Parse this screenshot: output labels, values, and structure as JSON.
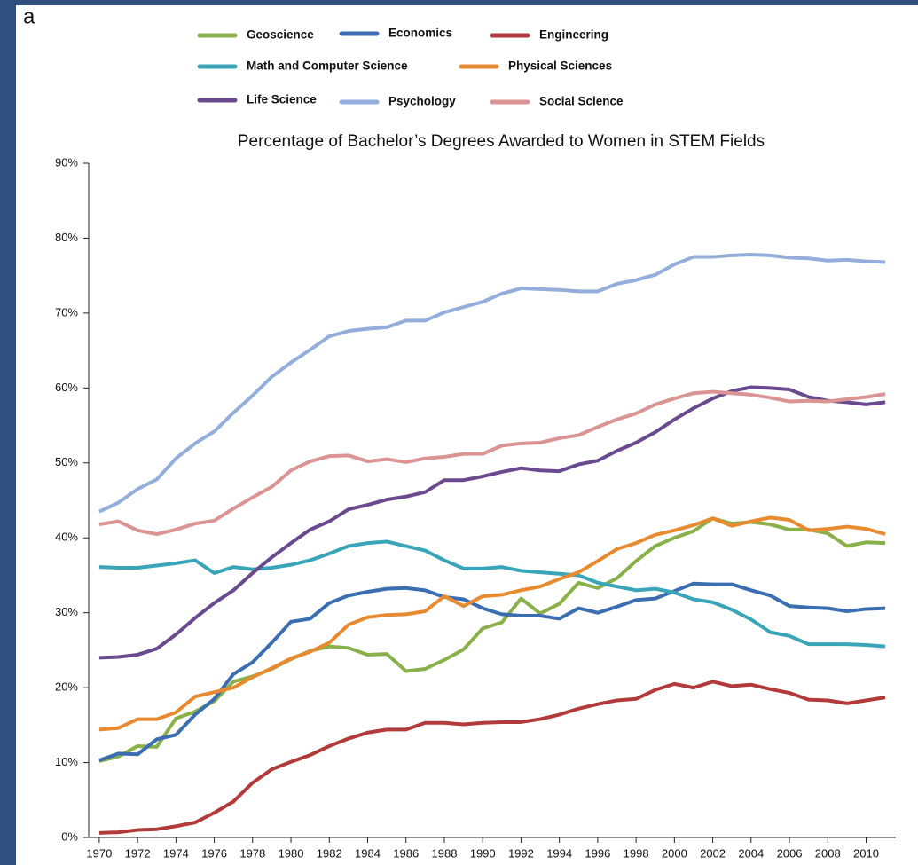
{
  "panel_label": "a",
  "chart_data": {
    "type": "line",
    "title": "Percentage of Bachelor’s Degrees Awarded to Women in STEM Fields",
    "x": [
      1970,
      1971,
      1972,
      1973,
      1974,
      1975,
      1976,
      1977,
      1978,
      1979,
      1980,
      1981,
      1982,
      1983,
      1984,
      1985,
      1986,
      1987,
      1988,
      1989,
      1990,
      1991,
      1992,
      1993,
      1994,
      1995,
      1996,
      1997,
      1998,
      1999,
      2000,
      2001,
      2002,
      2003,
      2004,
      2005,
      2006,
      2007,
      2008,
      2009,
      2010,
      2011
    ],
    "xlim": [
      1969.45,
      2011.55
    ],
    "xticks": [
      1970,
      1972,
      1974,
      1976,
      1978,
      1980,
      1982,
      1984,
      1986,
      1988,
      1990,
      1992,
      1994,
      1996,
      1998,
      2000,
      2002,
      2004,
      2006,
      2008,
      2010
    ],
    "ylim": [
      0,
      90
    ],
    "yticks": [
      {
        "value": 0,
        "label": "0%"
      },
      {
        "value": 10,
        "label": "10%"
      },
      {
        "value": 20,
        "label": "20%"
      },
      {
        "value": 30,
        "label": "30%"
      },
      {
        "value": 40,
        "label": "40%"
      },
      {
        "value": 50,
        "label": "50%"
      },
      {
        "value": 60,
        "label": "60%"
      },
      {
        "value": 70,
        "label": "70%"
      },
      {
        "value": 80,
        "label": "80%"
      },
      {
        "value": 90,
        "label": "90%"
      }
    ],
    "grid": false,
    "series": [
      {
        "name": "Geoscience",
        "color": "#8ab04a",
        "values": [
          10.2,
          10.8,
          12.2,
          12.1,
          15.9,
          16.8,
          18.2,
          20.8,
          21.5,
          22.5,
          23.8,
          24.9,
          25.5,
          25.3,
          24.4,
          24.5,
          22.2,
          22.5,
          23.7,
          25.1,
          27.9,
          28.7,
          31.9,
          29.9,
          31.2,
          34.0,
          33.3,
          34.6,
          36.9,
          38.9,
          40.0,
          40.9,
          42.6,
          41.9,
          42.1,
          41.8,
          41.1,
          41.1,
          40.6,
          38.9,
          39.4,
          39.3
        ]
      },
      {
        "name": "Economics",
        "color": "#3a6eb0",
        "values": [
          10.3,
          11.2,
          11.1,
          13.1,
          13.7,
          16.4,
          18.5,
          21.8,
          23.4,
          26.0,
          28.8,
          29.2,
          31.3,
          32.3,
          32.8,
          33.2,
          33.3,
          33.0,
          32.1,
          31.8,
          30.6,
          29.8,
          29.6,
          29.6,
          29.2,
          30.6,
          30.0,
          30.8,
          31.7,
          31.9,
          32.9,
          33.9,
          33.8,
          33.8,
          33.0,
          32.3,
          30.9,
          30.7,
          30.6,
          30.2,
          30.5,
          30.6
        ]
      },
      {
        "name": "Engineering",
        "color": "#b23a3a",
        "values": [
          0.6,
          0.7,
          1.0,
          1.1,
          1.5,
          2.0,
          3.3,
          4.8,
          7.3,
          9.1,
          10.1,
          11.0,
          12.2,
          13.2,
          14.0,
          14.4,
          14.4,
          15.3,
          15.3,
          15.1,
          15.3,
          15.4,
          15.4,
          15.8,
          16.4,
          17.2,
          17.8,
          18.3,
          18.5,
          19.7,
          20.5,
          20.0,
          20.8,
          20.2,
          20.4,
          19.8,
          19.3,
          18.4,
          18.3,
          17.9,
          18.3,
          18.7
        ]
      },
      {
        "name": "Math and Computer Science",
        "color": "#3aa5b8",
        "values": [
          36.1,
          36.0,
          36.0,
          36.3,
          36.6,
          37.0,
          35.3,
          36.1,
          35.8,
          36.0,
          36.4,
          37.0,
          37.9,
          38.9,
          39.3,
          39.5,
          38.9,
          38.3,
          37.0,
          35.9,
          35.9,
          36.1,
          35.6,
          35.4,
          35.2,
          35.0,
          34.0,
          33.5,
          33.0,
          33.2,
          32.7,
          31.8,
          31.4,
          30.4,
          29.1,
          27.4,
          26.9,
          25.8,
          25.8,
          25.8,
          25.7,
          25.5
        ]
      },
      {
        "name": "Physical Sciences",
        "color": "#e88a30",
        "values": [
          14.4,
          14.6,
          15.8,
          15.8,
          16.7,
          18.8,
          19.4,
          20.0,
          21.4,
          22.6,
          23.9,
          24.8,
          26.0,
          28.4,
          29.4,
          29.7,
          29.8,
          30.2,
          32.2,
          30.9,
          32.2,
          32.4,
          33.0,
          33.5,
          34.5,
          35.4,
          36.9,
          38.5,
          39.3,
          40.4,
          41.0,
          41.7,
          42.6,
          41.6,
          42.2,
          42.7,
          42.4,
          41.0,
          41.2,
          41.5,
          41.2,
          40.5
        ]
      },
      {
        "name": "Life Science",
        "color": "#6a4a8e",
        "values": [
          24.0,
          24.1,
          24.4,
          25.2,
          27.1,
          29.3,
          31.3,
          33.0,
          35.3,
          37.4,
          39.3,
          41.1,
          42.2,
          43.8,
          44.4,
          45.1,
          45.5,
          46.1,
          47.7,
          47.7,
          48.2,
          48.8,
          49.3,
          49.0,
          48.9,
          49.8,
          50.3,
          51.6,
          52.7,
          54.1,
          55.8,
          57.3,
          58.6,
          59.6,
          60.1,
          60.0,
          59.8,
          58.8,
          58.3,
          58.1,
          57.8,
          58.1
        ]
      },
      {
        "name": "Psychology",
        "color": "#93aedb",
        "values": [
          43.5,
          44.7,
          46.5,
          47.8,
          50.6,
          52.6,
          54.2,
          56.7,
          59.0,
          61.5,
          63.4,
          65.1,
          66.9,
          67.6,
          67.9,
          68.1,
          69.0,
          69.0,
          70.1,
          70.8,
          71.5,
          72.6,
          73.3,
          73.2,
          73.1,
          72.9,
          72.9,
          73.9,
          74.4,
          75.1,
          76.5,
          77.5,
          77.5,
          77.7,
          77.8,
          77.7,
          77.4,
          77.3,
          77.0,
          77.1,
          76.9,
          76.8
        ]
      },
      {
        "name": "Social Science",
        "color": "#d99493",
        "values": [
          41.8,
          42.2,
          41.0,
          40.5,
          41.1,
          41.9,
          42.3,
          43.9,
          45.4,
          46.8,
          49.0,
          50.2,
          50.9,
          51.0,
          50.2,
          50.5,
          50.1,
          50.6,
          50.8,
          51.2,
          51.2,
          52.3,
          52.6,
          52.7,
          53.3,
          53.7,
          54.8,
          55.8,
          56.6,
          57.8,
          58.6,
          59.3,
          59.5,
          59.3,
          59.1,
          58.7,
          58.2,
          58.3,
          58.2,
          58.5,
          58.8,
          59.2
        ]
      }
    ]
  }
}
